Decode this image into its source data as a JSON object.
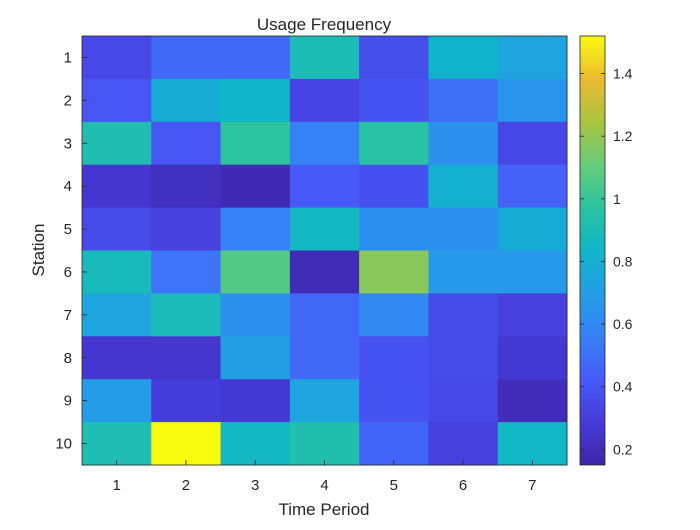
{
  "chart_data": {
    "type": "heatmap",
    "title": "Usage Frequency",
    "xlabel": "Time Period",
    "ylabel": "Station",
    "x": [
      1,
      2,
      3,
      4,
      5,
      6,
      7
    ],
    "y": [
      1,
      2,
      3,
      4,
      5,
      6,
      7,
      8,
      9,
      10
    ],
    "values": [
      [
        0.35,
        0.47,
        0.47,
        0.9,
        0.37,
        0.82,
        0.74
      ],
      [
        0.4,
        0.78,
        0.84,
        0.33,
        0.39,
        0.5,
        0.65
      ],
      [
        0.92,
        0.4,
        0.97,
        0.56,
        0.96,
        0.63,
        0.34
      ],
      [
        0.26,
        0.22,
        0.18,
        0.42,
        0.38,
        0.81,
        0.45
      ],
      [
        0.36,
        0.31,
        0.56,
        0.86,
        0.63,
        0.63,
        0.78
      ],
      [
        0.88,
        0.51,
        1.06,
        0.19,
        1.18,
        0.67,
        0.67
      ],
      [
        0.74,
        0.89,
        0.63,
        0.47,
        0.6,
        0.36,
        0.31
      ],
      [
        0.26,
        0.26,
        0.71,
        0.47,
        0.39,
        0.36,
        0.27
      ],
      [
        0.69,
        0.3,
        0.28,
        0.74,
        0.39,
        0.35,
        0.2
      ],
      [
        0.91,
        1.52,
        0.86,
        0.93,
        0.46,
        0.31,
        0.85
      ]
    ],
    "colorbar": {
      "ticks": [
        0.2,
        0.4,
        0.6,
        0.8,
        1,
        1.2,
        1.4
      ],
      "tick_labels": [
        "0.2",
        "0.4",
        "0.6",
        "0.8",
        "1",
        "1.2",
        "1.4"
      ]
    },
    "colormap": "parula",
    "clim": [
      0.15,
      1.52
    ]
  }
}
